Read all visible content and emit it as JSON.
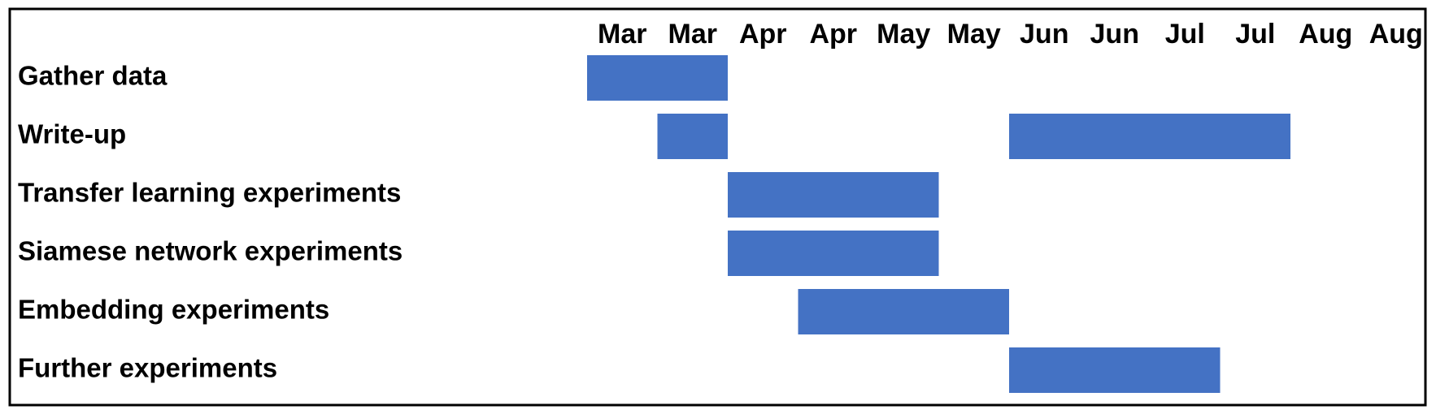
{
  "chart_data": {
    "type": "gantt",
    "title": "",
    "xlabel": "",
    "ylabel": "",
    "tick_labels": [
      "Mar",
      "Mar",
      "Apr",
      "Apr",
      "May",
      "May",
      "Jun",
      "Jun",
      "Jul",
      "Jul",
      "Aug",
      "Aug"
    ],
    "x_unit": "half-month periods starting early March",
    "xlim": [
      0,
      12
    ],
    "bar_color": "#4472C4",
    "grid": false,
    "legend": "none",
    "tasks": [
      {
        "name": "Gather data",
        "segments": [
          [
            0,
            2
          ]
        ]
      },
      {
        "name": "Write-up",
        "segments": [
          [
            1,
            2
          ],
          [
            6,
            10
          ]
        ]
      },
      {
        "name": "Transfer learning experiments",
        "segments": [
          [
            2,
            5
          ]
        ]
      },
      {
        "name": "Siamese network experiments",
        "segments": [
          [
            2,
            5
          ]
        ]
      },
      {
        "name": "Embedding experiments",
        "segments": [
          [
            3,
            6
          ]
        ]
      },
      {
        "name": "Further experiments",
        "segments": [
          [
            6,
            9
          ]
        ]
      }
    ]
  }
}
